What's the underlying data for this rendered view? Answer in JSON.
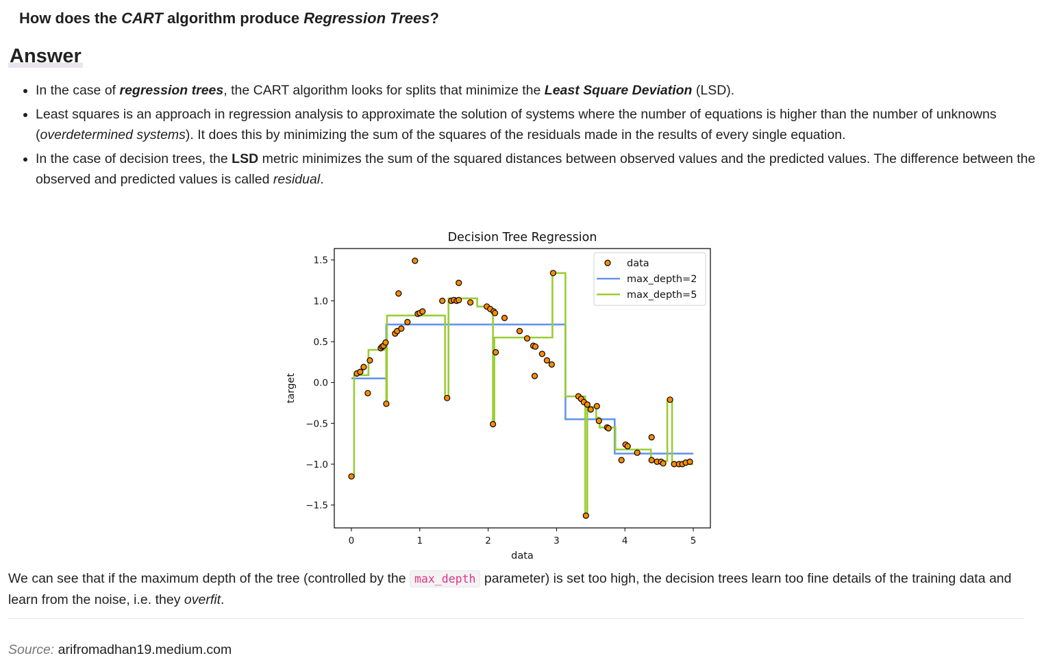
{
  "question": {
    "part1": "How does the ",
    "em1": "CART",
    "part2": " algorithm produce ",
    "em2": "Regression Trees",
    "part3": "?"
  },
  "answer_heading": "Answer",
  "bullets": [
    {
      "t1": "In the case of ",
      "b1": "regression trees",
      "t2": ", the CART algorithm looks for splits that minimize the ",
      "b2": "Least Square Deviation",
      "t3": " (LSD)."
    },
    {
      "t1": "Least squares is an approach in regression analysis to approximate the solution of systems where the number of equations is higher than the number of unknowns (",
      "em": "overdetermined systems",
      "t2": "). It does this by minimizing the sum of the squares of the residuals made in the results of every single equation."
    },
    {
      "t1": "In the case of decision trees, the ",
      "b": "LSD",
      "t2": " metric minimizes the sum of the squared distances between observed values and the predicted values. The difference between the observed and predicted values is called ",
      "em": "residual",
      "t3": "."
    }
  ],
  "conclusion": {
    "t1": "We can see that if the maximum depth of the tree (controlled by the ",
    "code": "max_depth",
    "t2": " parameter) is set too high, the decision trees learn too fine details of the training data and learn from the noise, i.e. they ",
    "em": "overfit",
    "t3": "."
  },
  "source": {
    "label": "Source:",
    "value": "arifromadhan19.medium.com"
  },
  "chart_data": {
    "type": "scatter",
    "title": "Decision Tree Regression",
    "xlabel": "data",
    "ylabel": "target",
    "xlim": [
      -0.25,
      5.25
    ],
    "ylim": [
      -1.78,
      1.64
    ],
    "xticks": [
      0,
      1,
      2,
      3,
      4,
      5
    ],
    "yticks": [
      1.5,
      1.0,
      0.5,
      0.0,
      -0.5,
      -1.0,
      -1.5
    ],
    "ytick_labels": [
      "1.5",
      "1.0",
      "0.5",
      "0.0",
      "−0.5",
      "−1.0",
      "−1.5"
    ],
    "legend_position": "top-right",
    "colors": {
      "data": "#ff8c00",
      "max_depth=2": "#6495ed",
      "max_depth=5": "#9acd32"
    },
    "series": [
      {
        "name": "data",
        "kind": "points",
        "points": [
          [
            0.0,
            -1.15
          ],
          [
            0.08,
            0.11
          ],
          [
            0.13,
            0.13
          ],
          [
            0.18,
            0.19
          ],
          [
            0.24,
            -0.13
          ],
          [
            0.27,
            0.27
          ],
          [
            0.43,
            0.42
          ],
          [
            0.45,
            0.44
          ],
          [
            0.47,
            0.45
          ],
          [
            0.5,
            0.49
          ],
          [
            0.51,
            -0.26
          ],
          [
            0.64,
            0.6
          ],
          [
            0.67,
            0.63
          ],
          [
            0.69,
            1.09
          ],
          [
            0.73,
            0.66
          ],
          [
            0.82,
            0.74
          ],
          [
            0.93,
            1.49
          ],
          [
            0.97,
            0.84
          ],
          [
            1.0,
            0.85
          ],
          [
            1.04,
            0.87
          ],
          [
            1.33,
            1.0
          ],
          [
            1.4,
            -0.19
          ],
          [
            1.46,
            1.0
          ],
          [
            1.5,
            1.01
          ],
          [
            1.54,
            1.0
          ],
          [
            1.57,
            1.22
          ],
          [
            1.57,
            1.01
          ],
          [
            1.74,
            0.98
          ],
          [
            1.98,
            0.93
          ],
          [
            2.03,
            0.9
          ],
          [
            2.08,
            0.87
          ],
          [
            2.1,
            0.85
          ],
          [
            2.07,
            -0.51
          ],
          [
            2.11,
            0.37
          ],
          [
            2.24,
            0.79
          ],
          [
            2.46,
            0.63
          ],
          [
            2.57,
            0.54
          ],
          [
            2.66,
            0.45
          ],
          [
            2.69,
            0.44
          ],
          [
            2.68,
            0.08
          ],
          [
            2.79,
            0.35
          ],
          [
            2.86,
            0.27
          ],
          [
            2.93,
            0.22
          ],
          [
            2.95,
            1.34
          ],
          [
            3.32,
            -0.17
          ],
          [
            3.36,
            -0.2
          ],
          [
            3.4,
            -0.24
          ],
          [
            3.43,
            -1.63
          ],
          [
            3.45,
            -0.27
          ],
          [
            3.5,
            -0.33
          ],
          [
            3.59,
            -0.29
          ],
          [
            3.62,
            -0.47
          ],
          [
            3.74,
            -0.55
          ],
          [
            3.76,
            -0.56
          ],
          [
            3.95,
            -0.95
          ],
          [
            4.01,
            -0.76
          ],
          [
            4.04,
            -0.78
          ],
          [
            4.18,
            -0.86
          ],
          [
            4.39,
            -0.67
          ],
          [
            4.39,
            -0.95
          ],
          [
            4.47,
            -0.97
          ],
          [
            4.53,
            -0.97
          ],
          [
            4.56,
            -0.99
          ],
          [
            4.66,
            -0.21
          ],
          [
            4.72,
            -1.0
          ],
          [
            4.79,
            -1.0
          ],
          [
            4.84,
            -1.0
          ],
          [
            4.89,
            -0.98
          ],
          [
            4.95,
            -0.97
          ]
        ]
      },
      {
        "name": "max_depth=2",
        "kind": "step",
        "x": [
          0.0,
          0.51,
          0.51,
          3.13,
          3.13,
          3.85,
          3.85,
          5.0
        ],
        "y": [
          0.05,
          0.05,
          0.71,
          0.71,
          -0.45,
          -0.45,
          -0.87,
          -0.87
        ]
      },
      {
        "name": "max_depth=5",
        "kind": "step",
        "x": [
          0.0,
          0.04,
          0.04,
          0.25,
          0.25,
          0.48,
          0.48,
          0.51,
          0.51,
          0.52,
          0.52,
          1.37,
          1.37,
          1.42,
          1.42,
          1.84,
          1.84,
          2.03,
          2.03,
          2.07,
          2.07,
          2.09,
          2.09,
          2.94,
          2.94,
          3.13,
          3.13,
          3.42,
          3.42,
          3.45,
          3.45,
          3.58,
          3.58,
          3.63,
          3.63,
          3.86,
          3.86,
          4.38,
          4.38,
          4.62,
          4.62,
          4.69,
          4.69,
          5.0
        ],
        "y": [
          -1.15,
          -1.15,
          0.09,
          0.09,
          0.4,
          0.4,
          0.45,
          0.45,
          -0.26,
          -0.26,
          0.82,
          0.82,
          -0.19,
          -0.19,
          1.03,
          1.03,
          0.93,
          0.93,
          0.87,
          0.87,
          -0.51,
          -0.51,
          0.55,
          0.55,
          1.34,
          1.34,
          -0.17,
          -0.17,
          -1.63,
          -1.63,
          -0.3,
          -0.3,
          -0.43,
          -0.43,
          -0.55,
          -0.55,
          -0.82,
          -0.82,
          -0.96,
          -0.96,
          -0.21,
          -0.21,
          -1.0,
          -1.0
        ]
      }
    ]
  }
}
